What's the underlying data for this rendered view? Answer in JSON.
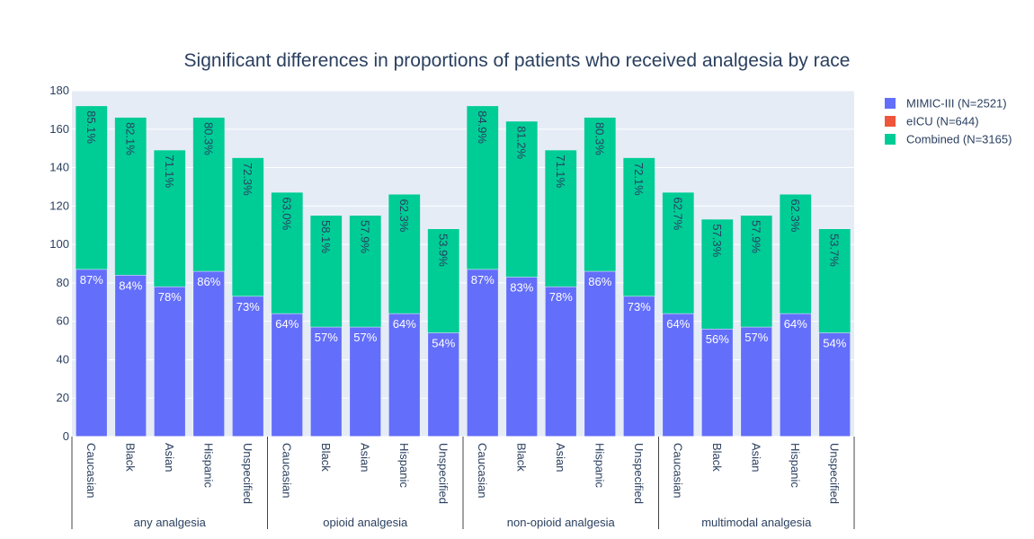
{
  "chart_data": {
    "type": "bar",
    "barmode": "overlay",
    "title": "Significant differences in proportions of patients who received analgesia by race",
    "xlabel": "",
    "ylabel": "",
    "ylim": [
      0,
      180
    ],
    "yticks": [
      0,
      20,
      40,
      60,
      80,
      100,
      120,
      140,
      160,
      180
    ],
    "grid": true,
    "legend_placement": "top-right",
    "groups": [
      {
        "name": "any analgesia",
        "categories": [
          "Caucasian",
          "Black",
          "Asian",
          "Hispanic",
          "Unspecified"
        ]
      },
      {
        "name": "opioid analgesia",
        "categories": [
          "Caucasian",
          "Black",
          "Asian",
          "Hispanic",
          "Unspecified"
        ]
      },
      {
        "name": "non-opioid analgesia",
        "categories": [
          "Caucasian",
          "Black",
          "Asian",
          "Hispanic",
          "Unspecified"
        ]
      },
      {
        "name": "multimodal analgesia",
        "categories": [
          "Caucasian",
          "Black",
          "Asian",
          "Hispanic",
          "Unspecified"
        ]
      }
    ],
    "series": [
      {
        "name": "MIMIC-III (N=2521)",
        "color": "#636efa",
        "values": [
          87,
          84,
          78,
          86,
          73,
          64,
          57,
          57,
          64,
          54,
          87,
          83,
          78,
          86,
          73,
          64,
          56,
          57,
          64,
          54
        ],
        "labels": [
          "87%",
          "84%",
          "78%",
          "86%",
          "73%",
          "64%",
          "57%",
          "57%",
          "64%",
          "54%",
          "87%",
          "83%",
          "78%",
          "86%",
          "73%",
          "64%",
          "56%",
          "57%",
          "64%",
          "54%"
        ]
      },
      {
        "name": "eICU (N=644)",
        "color": "#ef553b",
        "values": [],
        "labels": []
      },
      {
        "name": "Combined (N=3165)",
        "color": "#00cc96",
        "values": [
          172,
          166,
          149,
          166,
          145,
          127,
          115,
          115,
          126,
          108,
          172,
          164,
          149,
          166,
          145,
          127,
          113,
          115,
          126,
          108
        ],
        "labels": [
          "85.1%",
          "82.1%",
          "71.1%",
          "80.3%",
          "72.3%",
          "63.0%",
          "58.1%",
          "57.9%",
          "62.3%",
          "53.9%",
          "84.9%",
          "81.2%",
          "71.1%",
          "80.3%",
          "72.1%",
          "62.7%",
          "57.3%",
          "57.9%",
          "62.3%",
          "53.7%"
        ]
      }
    ]
  }
}
